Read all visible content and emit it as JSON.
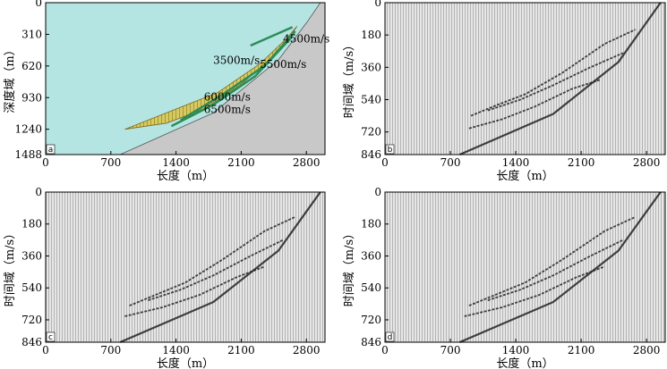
{
  "chart_data": [
    {
      "id": "a",
      "type": "velocity-model",
      "panel_label": "a",
      "xlabel": "长度（m）",
      "ylabel": "深度域（m）",
      "xlim": [
        0,
        3000
      ],
      "ylim": [
        0,
        1488
      ],
      "xticks": [
        "0",
        "700",
        "1400",
        "2100",
        "2800"
      ],
      "yticks": [
        "0",
        "310",
        "620",
        "930",
        "1240",
        "1488"
      ],
      "layers": [
        {
          "name": "background",
          "velocity": "3500m/s",
          "color": "#b5e5e3"
        },
        {
          "name": "layer-1",
          "velocity": "4500m/s",
          "color": "#d8ca62"
        },
        {
          "name": "layer-2",
          "velocity": "5500m/s",
          "color": "#d8ca62"
        },
        {
          "name": "layer-3",
          "velocity": "6000m/s",
          "color": "#d8ca62"
        },
        {
          "name": "layer-4",
          "velocity": "6500m/s",
          "color": "#d8ca62"
        },
        {
          "name": "bedrock",
          "velocity": "",
          "color": "#c8c8c8"
        }
      ],
      "surface": {
        "x": [
          800,
          1800,
          2500,
          2800,
          2950
        ],
        "y": [
          1488,
          1080,
          560,
          200,
          0
        ]
      }
    },
    {
      "id": "b",
      "type": "seismic-section",
      "panel_label": "b",
      "xlabel": "长度（m）",
      "ylabel": "时间域（m/s）",
      "xlim": [
        0,
        3000
      ],
      "ylim": [
        0,
        846
      ],
      "xticks": [
        "0",
        "700",
        "1400",
        "2100",
        "2800"
      ],
      "yticks": [
        "0",
        "180",
        "360",
        "540",
        "720",
        "846"
      ],
      "events": [
        {
          "name": "surface",
          "x": [
            800,
            1800,
            2500,
            2800,
            2950
          ],
          "t": [
            846,
            620,
            330,
            110,
            0
          ]
        },
        {
          "name": "reflector-1",
          "x": [
            920,
            1200,
            1500,
            1900,
            2350,
            2680
          ],
          "t": [
            630,
            570,
            510,
            390,
            230,
            150
          ]
        },
        {
          "name": "reflector-2",
          "x": [
            1100,
            1450,
            1800,
            2200,
            2550
          ],
          "t": [
            600,
            540,
            460,
            360,
            280
          ]
        },
        {
          "name": "reflector-3",
          "x": [
            900,
            1250,
            1600,
            2000,
            2300
          ],
          "t": [
            700,
            650,
            580,
            480,
            430
          ]
        }
      ]
    },
    {
      "id": "c",
      "type": "seismic-section",
      "panel_label": "c",
      "xlabel": "长度（m）",
      "ylabel": "时间域（m/s）",
      "xlim": [
        0,
        3000
      ],
      "ylim": [
        0,
        846
      ],
      "xticks": [
        "0",
        "700",
        "1400",
        "2100",
        "2800"
      ],
      "yticks": [
        "0",
        "180",
        "360",
        "540",
        "720",
        "846"
      ],
      "events": [
        {
          "name": "surface",
          "x": [
            800,
            1800,
            2500,
            2800,
            2950
          ],
          "t": [
            846,
            620,
            330,
            110,
            0
          ]
        },
        {
          "name": "reflector-1",
          "x": [
            900,
            1200,
            1500,
            1900,
            2350,
            2680
          ],
          "t": [
            640,
            575,
            510,
            380,
            220,
            140
          ]
        },
        {
          "name": "reflector-2",
          "x": [
            1100,
            1450,
            1800,
            2200,
            2550
          ],
          "t": [
            610,
            550,
            470,
            360,
            270
          ]
        },
        {
          "name": "reflector-3",
          "x": [
            850,
            1250,
            1650,
            2050,
            2350
          ],
          "t": [
            700,
            650,
            580,
            480,
            420
          ]
        }
      ]
    },
    {
      "id": "d",
      "type": "seismic-section",
      "panel_label": "d",
      "xlabel": "长度（m）",
      "ylabel": "时间域（m/s）",
      "xlim": [
        0,
        3000
      ],
      "ylim": [
        0,
        846
      ],
      "xticks": [
        "0",
        "700",
        "1400",
        "2100",
        "2800"
      ],
      "yticks": [
        "0",
        "180",
        "360",
        "540",
        "720",
        "846"
      ],
      "events": [
        {
          "name": "surface",
          "x": [
            800,
            1800,
            2500,
            2800,
            2950
          ],
          "t": [
            846,
            620,
            330,
            110,
            0
          ]
        },
        {
          "name": "reflector-1",
          "x": [
            900,
            1200,
            1500,
            1900,
            2350,
            2680
          ],
          "t": [
            640,
            575,
            510,
            380,
            220,
            140
          ]
        },
        {
          "name": "reflector-2",
          "x": [
            1100,
            1450,
            1800,
            2200,
            2550
          ],
          "t": [
            610,
            550,
            470,
            360,
            270
          ]
        },
        {
          "name": "reflector-3",
          "x": [
            850,
            1250,
            1650,
            2050,
            2350
          ],
          "t": [
            700,
            650,
            580,
            480,
            420
          ]
        }
      ]
    }
  ]
}
